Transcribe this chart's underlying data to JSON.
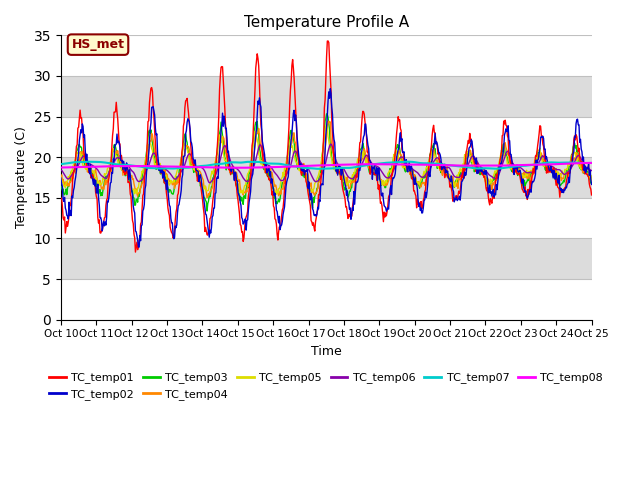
{
  "title": "Temperature Profile A",
  "xlabel": "Time",
  "ylabel": "Temperature (C)",
  "ylim": [
    0,
    35
  ],
  "yticks": [
    0,
    5,
    10,
    15,
    20,
    25,
    30,
    35
  ],
  "xlim": [
    0,
    15
  ],
  "xtick_labels": [
    "Oct 10",
    "Oct 11",
    "Oct 12",
    "Oct 13",
    "Oct 14",
    "Oct 15",
    "Oct 16",
    "Oct 17",
    "Oct 18",
    "Oct 19",
    "Oct 20",
    "Oct 21",
    "Oct 22",
    "Oct 23",
    "Oct 24",
    "Oct 25"
  ],
  "bg_color": "#dcdcdc",
  "annotation_text": "HS_met",
  "annotation_color": "#8b0000",
  "annotation_bg": "#fffacd",
  "series_colors": {
    "TC_temp01": "#ff0000",
    "TC_temp02": "#0000cc",
    "TC_temp03": "#00cc00",
    "TC_temp04": "#ff8800",
    "TC_temp05": "#dddd00",
    "TC_temp06": "#8800aa",
    "TC_temp07": "#00cccc",
    "TC_temp08": "#ff00ff"
  },
  "legend_entries": [
    "TC_temp01",
    "TC_temp02",
    "TC_temp03",
    "TC_temp04",
    "TC_temp05",
    "TC_temp06",
    "TC_temp07",
    "TC_temp08"
  ]
}
